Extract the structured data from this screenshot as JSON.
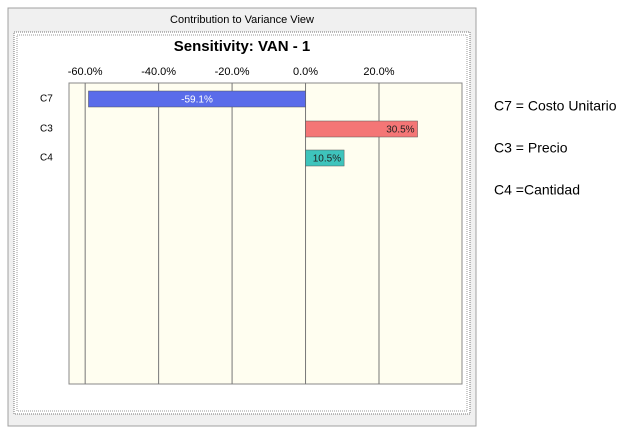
{
  "chart_data": {
    "type": "barh",
    "window_title": "Contribution to Variance View",
    "title": "Sensitivity: VAN - 1",
    "categories": [
      "C7",
      "C3",
      "C4"
    ],
    "values": [
      -59.1,
      30.5,
      10.5
    ],
    "value_labels": [
      "-59.1%",
      "30.5%",
      "10.5%"
    ],
    "colors": [
      "#5a6cea",
      "#f47676",
      "#3ec4bc"
    ],
    "xlim": [
      -64.4,
      42.6
    ],
    "xticks": [
      {
        "value": -60,
        "label": "-60.0%"
      },
      {
        "value": -40,
        "label": "-40.0%"
      },
      {
        "value": -20,
        "label": "-20.0%"
      },
      {
        "value": 0,
        "label": "0.0%"
      },
      {
        "value": 20,
        "label": "20.0%"
      }
    ],
    "grid": true,
    "annotations": [
      "C7 = Costo Unitario",
      "C3 = Precio",
      "C4 =Cantidad"
    ]
  }
}
